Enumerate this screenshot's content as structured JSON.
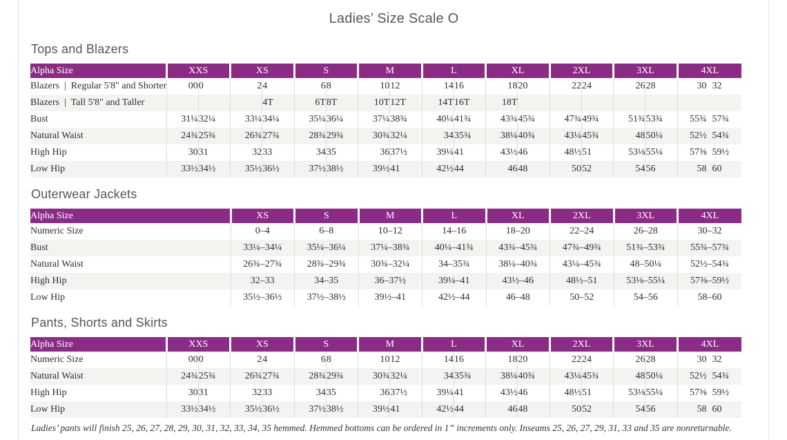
{
  "page": {
    "title": "Ladies’ Size Scale O",
    "footnote": "Ladies’ pants will finish 25, 26, 27, 28, 29, 30, 31, 32, 33, 34, 35 hemmed. Hemmed bottoms can be ordered in 1” increments only. Inseams 25, 26, 27, 29, 31, 33 and 35 are nonreturnable."
  },
  "colors": {
    "header_purple": "#8C2B86",
    "stripe_gray": "#F3F3F0",
    "border_gray": "#DCDCDC",
    "heading_gray": "#55565A"
  },
  "tables": [
    {
      "id": "tops-and-blazers",
      "section_title": "Tops and Blazers",
      "layout": "paired",
      "corner_label": "Alpha Size",
      "size_headers": [
        "XXS",
        "XS",
        "S",
        "M",
        "L",
        "XL",
        "2XL",
        "3XL",
        "4XL"
      ],
      "rows": [
        {
          "label": "Blazers  |  Regular 5'8\" and Shorter",
          "values": [
            "00",
            "0",
            "2",
            "4",
            "6",
            "8",
            "10",
            "12",
            "14",
            "16",
            "18",
            "20",
            "22",
            "24",
            "26",
            "28",
            "30",
            "32"
          ]
        },
        {
          "label": "Blazers  |  Tall 5'8\" and Taller",
          "values": [
            "",
            "",
            "",
            "4T",
            "6T",
            "8T",
            "10T",
            "12T",
            "14T",
            "16T",
            "18T",
            "",
            "",
            "",
            "",
            "",
            "",
            ""
          ]
        },
        {
          "label": "Bust",
          "values": [
            "31¼",
            "32¼",
            "33¼",
            "34¼",
            "35¼",
            "36¼",
            "37¼",
            "38¾",
            "40¼",
            "41¾",
            "43¾",
            "45¾",
            "47¾",
            "49¾",
            "51¾",
            "53¾",
            "55¾",
            "57¾"
          ]
        },
        {
          "label": "Natural Waist",
          "values": [
            "24¾",
            "25¾",
            "26¾",
            "27¾",
            "28¾",
            "29¾",
            "30¾",
            "32¼",
            "34",
            "35¾",
            "38¼",
            "40¾",
            "43¼",
            "45¾",
            "48",
            "50¼",
            "52½",
            "54¾"
          ]
        },
        {
          "label": "High Hip",
          "values": [
            "30",
            "31",
            "32",
            "33",
            "34",
            "35",
            "36",
            "37½",
            "39¼",
            "41",
            "43½",
            "46",
            "48½",
            "51",
            "53⅛",
            "55¼",
            "57⅜",
            "59½"
          ]
        },
        {
          "label": "Low Hip",
          "values": [
            "33½",
            "34½",
            "35½",
            "36½",
            "37½",
            "38½",
            "39½",
            "41",
            "42½",
            "44",
            "46",
            "48",
            "50",
            "52",
            "54",
            "56",
            "58",
            "60"
          ]
        }
      ]
    },
    {
      "id": "outerwear-jackets",
      "section_title": "Outerwear Jackets",
      "layout": "range",
      "corner_label": "Alpha Size",
      "size_headers": [
        "XS",
        "S",
        "M",
        "L",
        "XL",
        "2XL",
        "3XL",
        "4XL"
      ],
      "rows": [
        {
          "label": "Numeric Size",
          "values": [
            "0–4",
            "6–8",
            "10–12",
            "14–16",
            "18–20",
            "22–24",
            "26–28",
            "30–32"
          ]
        },
        {
          "label": "Bust",
          "values": [
            "33¼–34¼",
            "35¼–36¼",
            "37¼–38¾",
            "40¼–41¾",
            "43¾–45¾",
            "47¾–49¾",
            "51¾–53¾",
            "55¾–57¾"
          ]
        },
        {
          "label": "Natural Waist",
          "values": [
            "26¾–27¾",
            "28¾–29¾",
            "30¾–32¼",
            "34–35¾",
            "38¼–40¾",
            "43¼–45¾",
            "48–50¼",
            "52½–54¾"
          ]
        },
        {
          "label": "High Hip",
          "values": [
            "32–33",
            "34–35",
            "36–37½",
            "39¼–41",
            "43½–46",
            "48½–51",
            "53⅛–55¼",
            "57⅜–59½"
          ]
        },
        {
          "label": "Low Hip",
          "values": [
            "35½–36½",
            "37½–38½",
            "39½–41",
            "42½–44",
            "46–48",
            "50–52",
            "54–56",
            "58–60"
          ]
        }
      ]
    },
    {
      "id": "pants-shorts-and-skirts",
      "section_title": "Pants, Shorts and Skirts",
      "layout": "paired",
      "corner_label": "Alpha Size",
      "size_headers": [
        "XXS",
        "XS",
        "S",
        "M",
        "L",
        "XL",
        "2XL",
        "3XL",
        "4XL"
      ],
      "rows": [
        {
          "label": "Numeric Size",
          "values": [
            "00",
            "0",
            "2",
            "4",
            "6",
            "8",
            "10",
            "12",
            "14",
            "16",
            "18",
            "20",
            "22",
            "24",
            "26",
            "28",
            "30",
            "32"
          ]
        },
        {
          "label": "Natural Waist",
          "values": [
            "24¾",
            "25¾",
            "26¾",
            "27¾",
            "28¾",
            "29¾",
            "30¾",
            "32¼",
            "34",
            "35¾",
            "38¼",
            "40¾",
            "43¼",
            "45¾",
            "48",
            "50¼",
            "52½",
            "54¾"
          ]
        },
        {
          "label": "High Hip",
          "values": [
            "30",
            "31",
            "32",
            "33",
            "34",
            "35",
            "36",
            "37½",
            "39¼",
            "41",
            "43½",
            "46",
            "48½",
            "51",
            "53⅛",
            "55¼",
            "57⅜",
            "59½"
          ]
        },
        {
          "label": "Low Hip",
          "values": [
            "33½",
            "34½",
            "35½",
            "36½",
            "37½",
            "38½",
            "39½",
            "41",
            "42½",
            "44",
            "46",
            "48",
            "50",
            "52",
            "54",
            "56",
            "58",
            "60"
          ]
        }
      ]
    }
  ]
}
